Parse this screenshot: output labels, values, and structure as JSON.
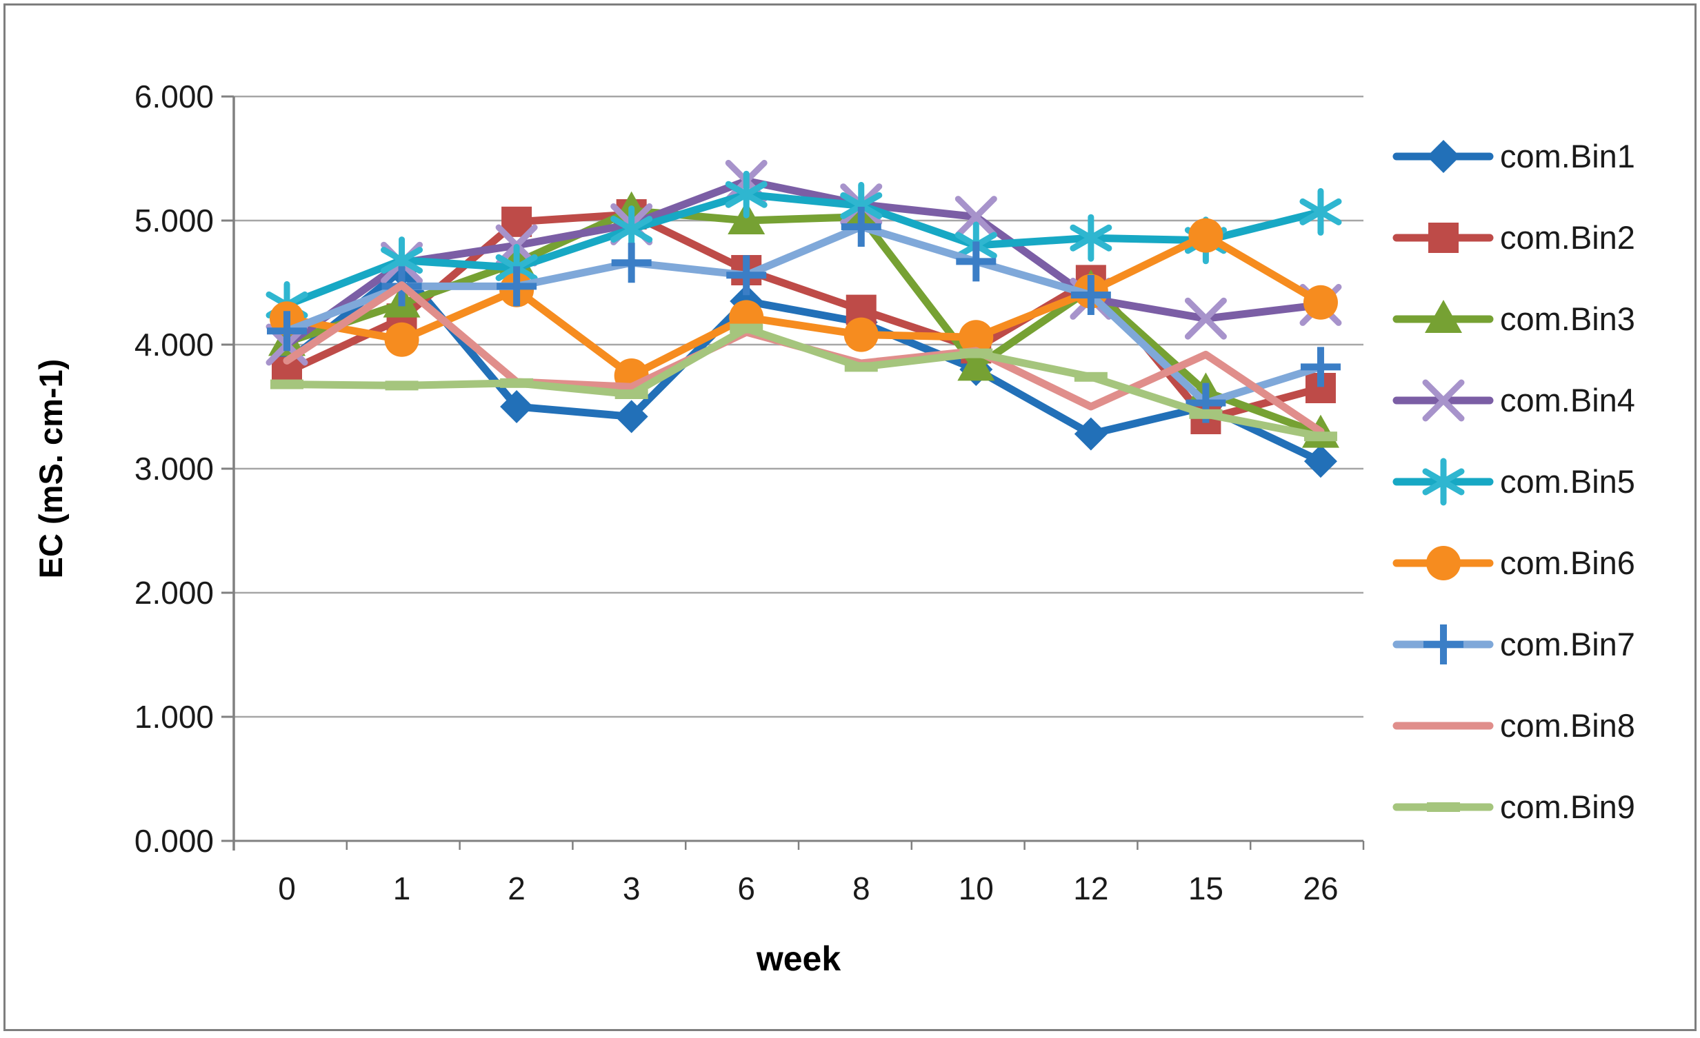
{
  "chart_data": {
    "type": "line",
    "title": "",
    "xlabel": "week",
    "ylabel": "EC (mS. cm-1)",
    "ylim": [
      0,
      6
    ],
    "ytick_step": 1,
    "ytick_labels": [
      "0.000",
      "1.000",
      "2.000",
      "3.000",
      "4.000",
      "5.000",
      "6.000"
    ],
    "categories": [
      "0",
      "1",
      "2",
      "3",
      "6",
      "8",
      "10",
      "12",
      "15",
      "26"
    ],
    "grid": "horizontal",
    "legend_position": "right",
    "axis_color": "#808080",
    "gridline_color": "#A6A6A6",
    "text_color": "#1A1A1A",
    "series": [
      {
        "name": "com.Bin1",
        "color": "#2270B8",
        "marker": "diamond",
        "values": [
          3.86,
          4.6,
          3.5,
          3.42,
          4.35,
          4.18,
          3.8,
          3.28,
          3.5,
          3.06
        ]
      },
      {
        "name": "com.Bin2",
        "color": "#BE4B48",
        "marker": "square",
        "values": [
          3.78,
          4.21,
          4.99,
          5.05,
          4.6,
          4.28,
          3.97,
          4.52,
          3.4,
          3.65
        ]
      },
      {
        "name": "com.Bin3",
        "color": "#76A133",
        "marker": "triangle",
        "values": [
          4.02,
          4.33,
          4.66,
          5.08,
          5.0,
          5.03,
          3.82,
          4.45,
          3.62,
          3.28
        ]
      },
      {
        "name": "com.Bin4",
        "color": "#7B5EA5",
        "marker": "x",
        "marker_color": "#A793CB",
        "values": [
          4.0,
          4.66,
          4.8,
          4.97,
          5.32,
          5.13,
          5.03,
          4.37,
          4.21,
          4.32
        ]
      },
      {
        "name": "com.Bin5",
        "color": "#17A8C4",
        "marker": "asterisk",
        "marker_color": "#2FB6D0",
        "values": [
          4.32,
          4.68,
          4.62,
          4.93,
          5.21,
          5.12,
          4.8,
          4.86,
          4.84,
          5.07
        ]
      },
      {
        "name": "com.Bin6",
        "color": "#F68C1F",
        "marker": "circle",
        "values": [
          4.21,
          4.04,
          4.44,
          3.75,
          4.22,
          4.08,
          4.06,
          4.43,
          4.88,
          4.34
        ]
      },
      {
        "name": "com.Bin7",
        "color": "#7FA8D9",
        "marker": "plus",
        "marker_color": "#3B7EC6",
        "values": [
          4.11,
          4.47,
          4.47,
          4.66,
          4.56,
          4.95,
          4.67,
          4.4,
          3.53,
          3.82
        ]
      },
      {
        "name": "com.Bin8",
        "color": "#E08E8B",
        "marker": "none",
        "values": [
          3.87,
          4.48,
          3.7,
          3.66,
          4.1,
          3.85,
          3.95,
          3.5,
          3.92,
          3.3
        ]
      },
      {
        "name": "com.Bin9",
        "color": "#A5C57D",
        "marker": "dash",
        "values": [
          3.68,
          3.67,
          3.69,
          3.6,
          4.13,
          3.82,
          3.93,
          3.74,
          3.44,
          3.26
        ]
      }
    ]
  }
}
